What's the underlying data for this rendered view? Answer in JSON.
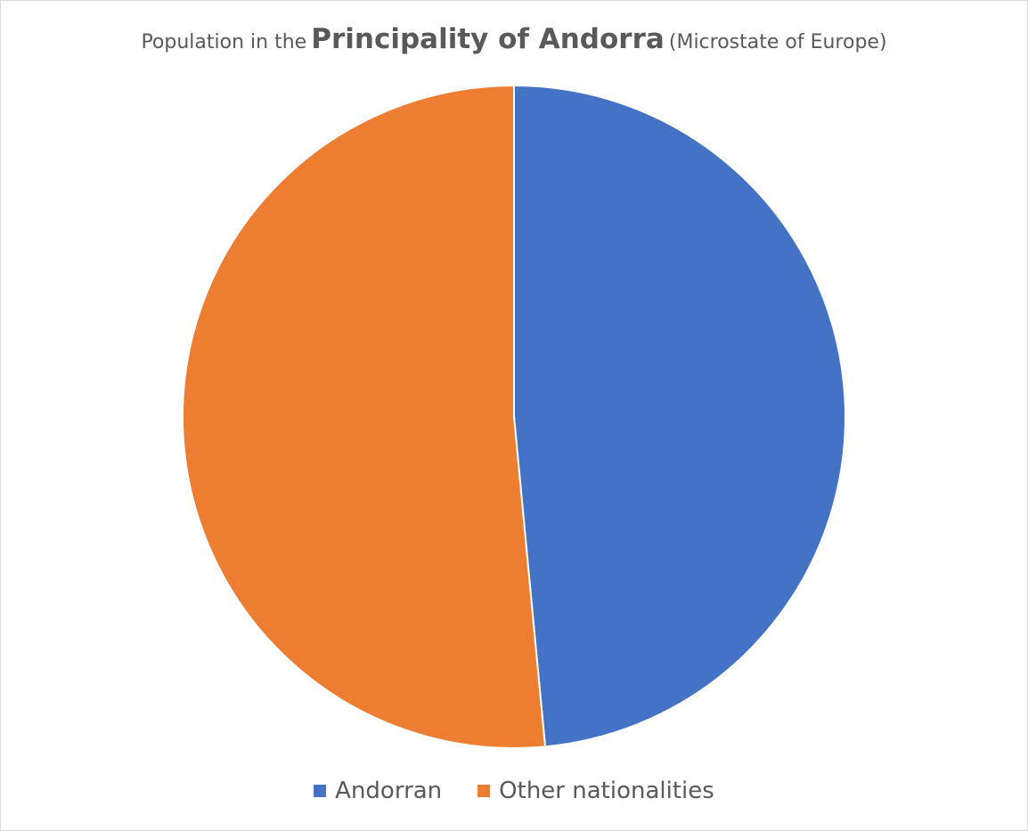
{
  "chart_data": {
    "type": "pie",
    "title": {
      "prefix": "Population in the",
      "main": "Principality of Andorra",
      "suffix": "(Microstate of Europe)"
    },
    "legend_position": "bottom",
    "series": [
      {
        "name": "Andorran",
        "value": 48.5,
        "color": "#4472C4"
      },
      {
        "name": "Other nationalities",
        "value": 51.5,
        "color": "#ED7D31"
      }
    ]
  }
}
